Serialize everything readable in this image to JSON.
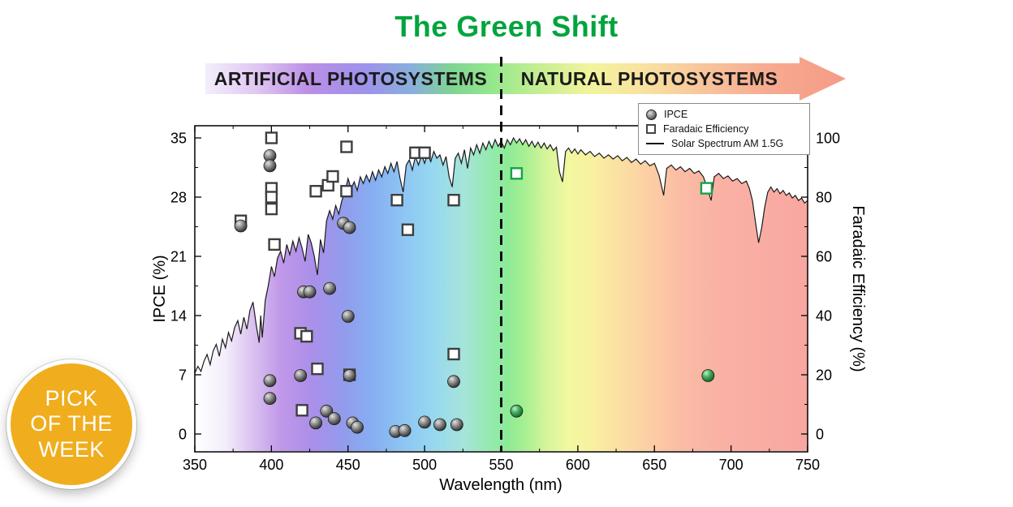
{
  "page": {
    "title": "The Green Shift",
    "title_color": "#00a43e"
  },
  "banner": {
    "left_label": "ARTIFICIAL PHOTOSYSTEMS",
    "right_label": "NATURAL PHOTOSYSTEMS",
    "gradient": [
      [
        0.0,
        "#f4eefb"
      ],
      [
        0.08,
        "#e0c7f2"
      ],
      [
        0.16,
        "#bb8fe6"
      ],
      [
        0.25,
        "#9e92ea"
      ],
      [
        0.32,
        "#8aaede"
      ],
      [
        0.385,
        "#7fd492"
      ],
      [
        0.45,
        "#96e88c"
      ],
      [
        0.52,
        "#c6ee93"
      ],
      [
        0.6,
        "#f2f49d"
      ],
      [
        0.68,
        "#f9e3a0"
      ],
      [
        0.78,
        "#f8c49c"
      ],
      [
        0.88,
        "#f7aa90"
      ],
      [
        1.0,
        "#f59a86"
      ]
    ]
  },
  "badge": {
    "lines": [
      "PICK",
      "OF THE",
      "WEEK"
    ],
    "color": "#f0ad1d"
  },
  "legend": {
    "items": [
      {
        "label": "IPCE",
        "marker": "sphere"
      },
      {
        "label": "Faradaic Efficiency",
        "marker": "square"
      },
      {
        "label": "Solar Spectrum AM 1.5G",
        "marker": "line"
      }
    ]
  },
  "chart_data": {
    "type": "scatter",
    "title": "The Green Shift",
    "xlabel": "Wavelength (nm)",
    "ylabel_left": "IPCE (%)",
    "ylabel_right": "Faradaic Efficiency (%)",
    "xlim": [
      350,
      750
    ],
    "ylim_left": [
      0,
      35
    ],
    "ylim_right": [
      0,
      100
    ],
    "x_ticks": [
      350,
      400,
      450,
      500,
      550,
      600,
      650,
      700,
      750
    ],
    "y_ticks_left": [
      0,
      7,
      14,
      21,
      28,
      35
    ],
    "y_ticks_right": [
      0,
      20,
      40,
      60,
      80,
      100
    ],
    "divider_x": 550,
    "grid": false,
    "legend_position": "top-right",
    "series": [
      {
        "name": "IPCE",
        "marker": "circle",
        "axis": "left",
        "units": "%",
        "points": [
          [
            380,
            24.6
          ],
          [
            399,
            32.9
          ],
          [
            399,
            31.7
          ],
          [
            399,
            6.3
          ],
          [
            399,
            4.2
          ],
          [
            419,
            6.9
          ],
          [
            421,
            16.8
          ],
          [
            425,
            16.8
          ],
          [
            429,
            1.3
          ],
          [
            436,
            2.7
          ],
          [
            438,
            17.2
          ],
          [
            441,
            1.8
          ],
          [
            447,
            24.9
          ],
          [
            451,
            24.4
          ],
          [
            450,
            13.9
          ],
          [
            451,
            6.9
          ],
          [
            453,
            1.3
          ],
          [
            456,
            0.8
          ],
          [
            481,
            0.3
          ],
          [
            487,
            0.4
          ],
          [
            500,
            1.4
          ],
          [
            510,
            1.1
          ],
          [
            519,
            6.2
          ],
          [
            521,
            1.1
          ],
          [
            560,
            2.7,
            "green"
          ],
          [
            685,
            6.9,
            "green"
          ]
        ]
      },
      {
        "name": "Faradaic Efficiency",
        "marker": "square",
        "axis": "right",
        "units": "%",
        "points": [
          [
            380,
            72
          ],
          [
            400,
            100
          ],
          [
            400,
            83
          ],
          [
            400,
            80
          ],
          [
            400,
            76
          ],
          [
            402,
            64
          ],
          [
            419,
            34
          ],
          [
            423,
            33
          ],
          [
            420,
            8
          ],
          [
            430,
            22
          ],
          [
            429,
            82
          ],
          [
            437,
            84
          ],
          [
            440,
            87
          ],
          [
            449,
            97
          ],
          [
            449,
            82
          ],
          [
            451,
            20
          ],
          [
            482,
            79
          ],
          [
            489,
            69
          ],
          [
            494,
            95
          ],
          [
            500,
            95
          ],
          [
            519,
            79
          ],
          [
            519,
            27
          ],
          [
            560,
            88,
            "green"
          ],
          [
            684,
            83,
            "green"
          ]
        ]
      },
      {
        "name": "Solar Spectrum AM 1.5G",
        "marker": "line",
        "axis": "left",
        "units": "normalized irradiance (plotted on IPCE scale)",
        "points": [
          [
            350,
            7.2
          ],
          [
            352,
            8.0
          ],
          [
            354,
            7.4
          ],
          [
            356,
            8.6
          ],
          [
            358,
            9.4
          ],
          [
            360,
            8.2
          ],
          [
            362,
            9.8
          ],
          [
            364,
            10.6
          ],
          [
            366,
            9.2
          ],
          [
            368,
            11.2
          ],
          [
            370,
            10.2
          ],
          [
            372,
            12.0
          ],
          [
            374,
            11.0
          ],
          [
            376,
            12.6
          ],
          [
            378,
            13.4
          ],
          [
            380,
            11.8
          ],
          [
            382,
            13.8
          ],
          [
            384,
            12.4
          ],
          [
            386,
            14.6
          ],
          [
            388,
            15.6
          ],
          [
            390,
            13.0
          ],
          [
            392,
            10.8
          ],
          [
            393,
            14.0
          ],
          [
            394,
            11.4
          ],
          [
            396,
            15.8
          ],
          [
            398,
            17.6
          ],
          [
            400,
            19.8
          ],
          [
            402,
            18.6
          ],
          [
            404,
            20.8
          ],
          [
            406,
            21.6
          ],
          [
            408,
            20.2
          ],
          [
            410,
            22.4
          ],
          [
            412,
            21.2
          ],
          [
            414,
            22.8
          ],
          [
            416,
            21.6
          ],
          [
            418,
            23.2
          ],
          [
            420,
            22.0
          ],
          [
            422,
            20.4
          ],
          [
            424,
            23.6
          ],
          [
            426,
            22.6
          ],
          [
            428,
            21.0
          ],
          [
            430,
            18.8
          ],
          [
            432,
            23.0
          ],
          [
            434,
            21.4
          ],
          [
            436,
            25.2
          ],
          [
            438,
            26.4
          ],
          [
            440,
            25.4
          ],
          [
            442,
            27.0
          ],
          [
            444,
            26.0
          ],
          [
            446,
            27.6
          ],
          [
            448,
            28.6
          ],
          [
            450,
            30.2
          ],
          [
            452,
            29.0
          ],
          [
            454,
            29.8
          ],
          [
            456,
            28.8
          ],
          [
            458,
            30.4
          ],
          [
            460,
            29.6
          ],
          [
            462,
            30.6
          ],
          [
            464,
            29.8
          ],
          [
            466,
            31.0
          ],
          [
            468,
            30.0
          ],
          [
            470,
            31.2
          ],
          [
            472,
            30.4
          ],
          [
            474,
            31.6
          ],
          [
            476,
            30.8
          ],
          [
            478,
            32.0
          ],
          [
            480,
            31.0
          ],
          [
            482,
            32.2
          ],
          [
            484,
            30.2
          ],
          [
            486,
            28.6
          ],
          [
            488,
            31.8
          ],
          [
            490,
            32.4
          ],
          [
            492,
            31.2
          ],
          [
            494,
            32.8
          ],
          [
            496,
            31.8
          ],
          [
            498,
            33.0
          ],
          [
            500,
            32.0
          ],
          [
            502,
            33.2
          ],
          [
            504,
            32.2
          ],
          [
            506,
            33.4
          ],
          [
            508,
            32.6
          ],
          [
            510,
            33.0
          ],
          [
            512,
            31.8
          ],
          [
            514,
            32.8
          ],
          [
            516,
            30.4
          ],
          [
            518,
            29.2
          ],
          [
            520,
            32.6
          ],
          [
            522,
            33.2
          ],
          [
            524,
            32.0
          ],
          [
            526,
            33.6
          ],
          [
            528,
            31.4
          ],
          [
            530,
            33.8
          ],
          [
            532,
            33.0
          ],
          [
            534,
            34.2
          ],
          [
            536,
            33.2
          ],
          [
            538,
            34.4
          ],
          [
            540,
            33.6
          ],
          [
            542,
            34.6
          ],
          [
            544,
            33.8
          ],
          [
            546,
            34.8
          ],
          [
            548,
            34.0
          ],
          [
            550,
            34.6
          ],
          [
            552,
            33.8
          ],
          [
            554,
            34.8
          ],
          [
            556,
            34.2
          ],
          [
            558,
            35.0
          ],
          [
            560,
            34.4
          ],
          [
            562,
            34.9
          ],
          [
            564,
            34.2
          ],
          [
            566,
            34.8
          ],
          [
            568,
            34.0
          ],
          [
            570,
            34.6
          ],
          [
            572,
            33.9
          ],
          [
            574,
            34.5
          ],
          [
            576,
            33.8
          ],
          [
            578,
            34.4
          ],
          [
            580,
            33.7
          ],
          [
            582,
            34.2
          ],
          [
            584,
            33.5
          ],
          [
            586,
            33.9
          ],
          [
            588,
            31.0
          ],
          [
            590,
            29.8
          ],
          [
            592,
            33.4
          ],
          [
            594,
            33.8
          ],
          [
            596,
            33.2
          ],
          [
            598,
            33.7
          ],
          [
            600,
            33.1
          ],
          [
            602,
            33.6
          ],
          [
            605,
            33.0
          ],
          [
            608,
            33.4
          ],
          [
            611,
            32.8
          ],
          [
            614,
            33.2
          ],
          [
            617,
            32.6
          ],
          [
            620,
            33.0
          ],
          [
            623,
            32.5
          ],
          [
            626,
            32.9
          ],
          [
            629,
            32.3
          ],
          [
            632,
            32.7
          ],
          [
            635,
            32.1
          ],
          [
            638,
            32.5
          ],
          [
            641,
            31.9
          ],
          [
            644,
            32.3
          ],
          [
            647,
            31.7
          ],
          [
            650,
            32.0
          ],
          [
            653,
            30.6
          ],
          [
            656,
            28.2
          ],
          [
            658,
            31.4
          ],
          [
            661,
            31.8
          ],
          [
            664,
            31.2
          ],
          [
            667,
            31.6
          ],
          [
            670,
            31.0
          ],
          [
            673,
            31.4
          ],
          [
            676,
            30.8
          ],
          [
            679,
            31.1
          ],
          [
            682,
            30.4
          ],
          [
            685,
            28.8
          ],
          [
            687,
            27.6
          ],
          [
            689,
            30.4
          ],
          [
            692,
            30.8
          ],
          [
            695,
            30.2
          ],
          [
            698,
            30.5
          ],
          [
            701,
            29.9
          ],
          [
            704,
            30.2
          ],
          [
            707,
            29.6
          ],
          [
            710,
            29.9
          ],
          [
            712,
            29.0
          ],
          [
            714,
            27.6
          ],
          [
            716,
            25.0
          ],
          [
            718,
            22.6
          ],
          [
            720,
            24.4
          ],
          [
            722,
            26.8
          ],
          [
            724,
            28.6
          ],
          [
            726,
            29.2
          ],
          [
            728,
            28.6
          ],
          [
            730,
            29.0
          ],
          [
            732,
            28.4
          ],
          [
            734,
            28.8
          ],
          [
            736,
            28.2
          ],
          [
            738,
            28.5
          ],
          [
            740,
            27.9
          ],
          [
            742,
            28.2
          ],
          [
            744,
            27.6
          ],
          [
            746,
            27.9
          ],
          [
            748,
            27.3
          ],
          [
            750,
            27.6
          ]
        ]
      }
    ],
    "spectrum_gradient": [
      [
        0.0,
        "#ffffff"
      ],
      [
        0.05,
        "#f4edfb"
      ],
      [
        0.09,
        "#ddc6f1"
      ],
      [
        0.14,
        "#c098e9"
      ],
      [
        0.19,
        "#ab8fe9"
      ],
      [
        0.24,
        "#939bec"
      ],
      [
        0.29,
        "#86aef1"
      ],
      [
        0.34,
        "#8dc5f4"
      ],
      [
        0.39,
        "#98d8ef"
      ],
      [
        0.44,
        "#a5e5d9"
      ],
      [
        0.475,
        "#97e9b4"
      ],
      [
        0.51,
        "#8ceb97"
      ],
      [
        0.54,
        "#a9f092"
      ],
      [
        0.575,
        "#d7f59a"
      ],
      [
        0.61,
        "#f1f8a0"
      ],
      [
        0.65,
        "#f9f0a1"
      ],
      [
        0.69,
        "#fbe1a3"
      ],
      [
        0.74,
        "#fccfa5"
      ],
      [
        0.79,
        "#fbbda5"
      ],
      [
        0.85,
        "#fab2a4"
      ],
      [
        0.93,
        "#f9aca3"
      ],
      [
        1.0,
        "#f8a7a0"
      ]
    ]
  }
}
